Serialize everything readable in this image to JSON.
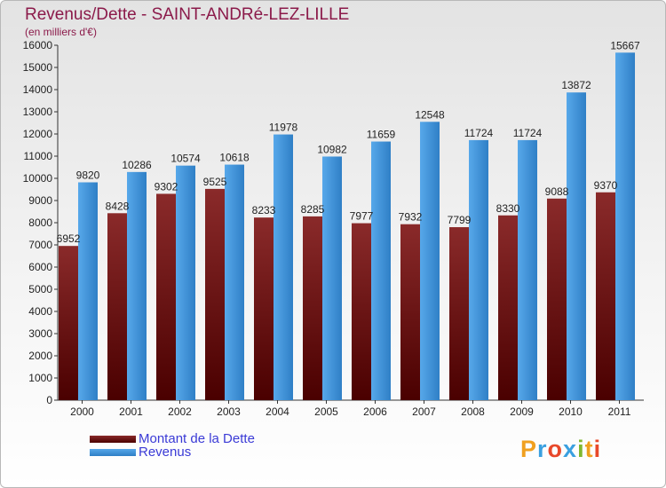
{
  "colors": {
    "debt": "#6e1414",
    "revenue": "#3b8fd6"
  },
  "chart_data": {
    "type": "bar",
    "title": "Revenus/Dette - SAINT-ANDRé-LEZ-LILLE",
    "subtitle": "(en milliers d'€)",
    "categories": [
      "2000",
      "2001",
      "2002",
      "2003",
      "2004",
      "2005",
      "2006",
      "2007",
      "2008",
      "2009",
      "2010",
      "2011"
    ],
    "series": [
      {
        "name": "Montant de la Dette",
        "values": [
          6952,
          8428,
          9302,
          9525,
          8233,
          8285,
          7977,
          7932,
          7799,
          8330,
          9088,
          9370
        ]
      },
      {
        "name": "Revenus",
        "values": [
          9820,
          10286,
          10574,
          10618,
          11978,
          10982,
          11659,
          12548,
          11724,
          11724,
          13872,
          15667
        ]
      }
    ],
    "ylim": [
      0,
      16000
    ],
    "ytick_step": 1000,
    "grid": false,
    "legend_position": "bottom-left"
  },
  "legend": {
    "debt_label": "Montant de la Dette",
    "revenue_label": "Revenus"
  },
  "logo": {
    "letters": [
      "P",
      "r",
      "o",
      "x",
      "i",
      "t",
      "i"
    ],
    "colors": [
      "#f0a020",
      "#3aa0e0",
      "#e8482a",
      "#3aa0e0",
      "#80b830",
      "#f0a020",
      "#e8482a"
    ]
  }
}
